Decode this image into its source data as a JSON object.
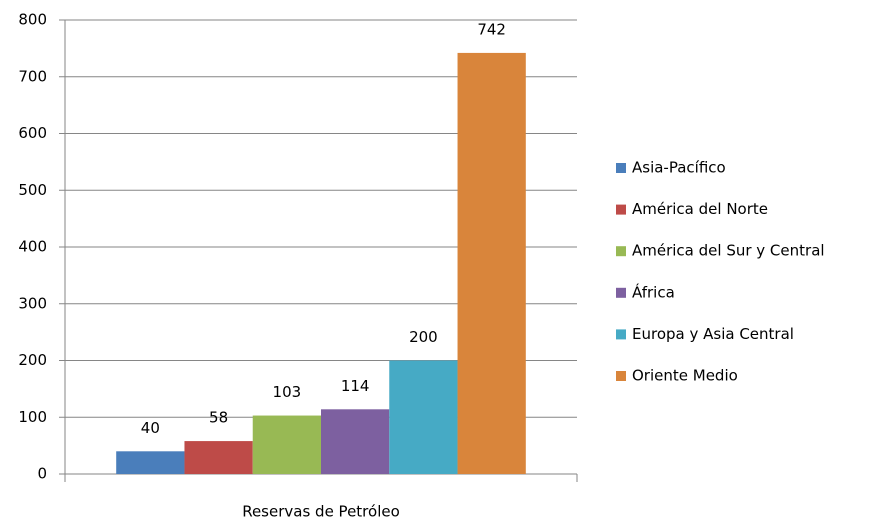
{
  "chart_data": {
    "type": "bar",
    "categories": [
      "Reservas de Petróleo"
    ],
    "series": [
      {
        "name": "Asia-Pacífico",
        "color": "#4a7ebb",
        "values": [
          40
        ]
      },
      {
        "name": "América del Norte",
        "color": "#be4b48",
        "values": [
          58
        ]
      },
      {
        "name": "América del Sur y Central",
        "color": "#98b954",
        "values": [
          103
        ]
      },
      {
        "name": "África",
        "color": "#7d60a0",
        "values": [
          114
        ]
      },
      {
        "name": "Europa y Asia Central",
        "color": "#46aac5",
        "values": [
          200
        ]
      },
      {
        "name": "Oriente Medio",
        "color": "#d9853b",
        "values": [
          742
        ]
      }
    ],
    "ylim": [
      0,
      800
    ],
    "yticks": [
      0,
      100,
      200,
      300,
      400,
      500,
      600,
      700,
      800
    ],
    "grid": true,
    "legend": "right"
  }
}
